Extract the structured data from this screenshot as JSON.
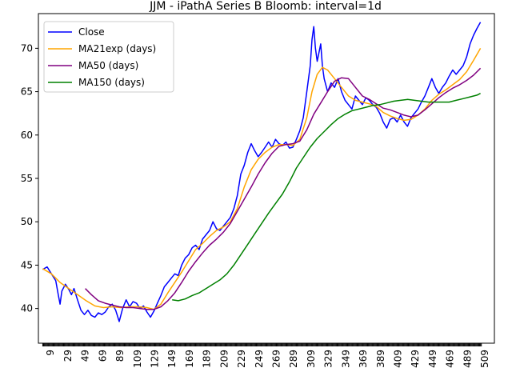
{
  "chart_data": {
    "type": "line",
    "title": "JJM - iPathA Series B Bloomb: interval=1d",
    "xlabel": "",
    "ylabel": "",
    "xlim": [
      -5,
      520
    ],
    "ylim": [
      36,
      74
    ],
    "y_ticks": [
      40,
      45,
      50,
      55,
      60,
      65,
      70
    ],
    "x_ticks": [
      9,
      29,
      49,
      69,
      89,
      109,
      129,
      149,
      169,
      189,
      209,
      229,
      249,
      269,
      289,
      309,
      329,
      349,
      369,
      389,
      409,
      429,
      449,
      469,
      489,
      509
    ],
    "grid": false,
    "legend_position": "top-left",
    "series": [
      {
        "name": "Close",
        "color": "#0000ff",
        "points": [
          [
            0,
            44.5
          ],
          [
            5,
            44.8
          ],
          [
            10,
            44.0
          ],
          [
            15,
            43.2
          ],
          [
            18,
            41.5
          ],
          [
            20,
            40.5
          ],
          [
            22,
            42.0
          ],
          [
            26,
            42.8
          ],
          [
            30,
            42.2
          ],
          [
            33,
            41.6
          ],
          [
            36,
            42.3
          ],
          [
            40,
            41.0
          ],
          [
            44,
            39.8
          ],
          [
            48,
            39.3
          ],
          [
            52,
            39.8
          ],
          [
            56,
            39.2
          ],
          [
            60,
            39.0
          ],
          [
            64,
            39.5
          ],
          [
            68,
            39.3
          ],
          [
            72,
            39.6
          ],
          [
            76,
            40.2
          ],
          [
            80,
            40.5
          ],
          [
            84,
            39.8
          ],
          [
            88,
            38.5
          ],
          [
            92,
            40.0
          ],
          [
            96,
            41.0
          ],
          [
            100,
            40.2
          ],
          [
            104,
            40.8
          ],
          [
            108,
            40.6
          ],
          [
            112,
            40.0
          ],
          [
            116,
            40.3
          ],
          [
            120,
            39.6
          ],
          [
            124,
            39.0
          ],
          [
            128,
            39.7
          ],
          [
            132,
            40.6
          ],
          [
            136,
            41.5
          ],
          [
            140,
            42.5
          ],
          [
            144,
            43.0
          ],
          [
            148,
            43.5
          ],
          [
            152,
            44.0
          ],
          [
            156,
            43.8
          ],
          [
            160,
            45.0
          ],
          [
            164,
            45.8
          ],
          [
            168,
            46.2
          ],
          [
            172,
            47.0
          ],
          [
            176,
            47.3
          ],
          [
            180,
            46.8
          ],
          [
            184,
            48.0
          ],
          [
            188,
            48.5
          ],
          [
            192,
            49.0
          ],
          [
            196,
            50.0
          ],
          [
            200,
            49.2
          ],
          [
            204,
            49.0
          ],
          [
            208,
            49.5
          ],
          [
            212,
            50.0
          ],
          [
            216,
            50.5
          ],
          [
            220,
            51.5
          ],
          [
            224,
            53.0
          ],
          [
            228,
            55.5
          ],
          [
            232,
            56.5
          ],
          [
            236,
            58.0
          ],
          [
            240,
            59.0
          ],
          [
            244,
            58.2
          ],
          [
            248,
            57.5
          ],
          [
            252,
            58.0
          ],
          [
            256,
            58.6
          ],
          [
            260,
            59.2
          ],
          [
            264,
            58.6
          ],
          [
            268,
            59.5
          ],
          [
            272,
            59.0
          ],
          [
            276,
            58.8
          ],
          [
            280,
            59.2
          ],
          [
            284,
            58.5
          ],
          [
            288,
            58.6
          ],
          [
            292,
            59.5
          ],
          [
            296,
            60.5
          ],
          [
            300,
            62.0
          ],
          [
            304,
            65.0
          ],
          [
            308,
            68.0
          ],
          [
            310,
            71.0
          ],
          [
            312,
            72.5
          ],
          [
            314,
            70.0
          ],
          [
            316,
            68.5
          ],
          [
            318,
            69.5
          ],
          [
            320,
            70.5
          ],
          [
            322,
            68.0
          ],
          [
            324,
            66.5
          ],
          [
            328,
            65.0
          ],
          [
            332,
            66.0
          ],
          [
            336,
            65.5
          ],
          [
            340,
            66.5
          ],
          [
            344,
            65.0
          ],
          [
            348,
            64.0
          ],
          [
            352,
            63.5
          ],
          [
            356,
            63.0
          ],
          [
            360,
            64.5
          ],
          [
            364,
            64.0
          ],
          [
            368,
            63.5
          ],
          [
            372,
            64.3
          ],
          [
            376,
            64.0
          ],
          [
            380,
            63.5
          ],
          [
            384,
            63.2
          ],
          [
            388,
            62.5
          ],
          [
            392,
            61.5
          ],
          [
            396,
            60.8
          ],
          [
            400,
            61.8
          ],
          [
            404,
            62.0
          ],
          [
            408,
            61.5
          ],
          [
            412,
            62.3
          ],
          [
            416,
            61.5
          ],
          [
            420,
            61.0
          ],
          [
            424,
            62.0
          ],
          [
            428,
            62.5
          ],
          [
            432,
            63.0
          ],
          [
            436,
            63.8
          ],
          [
            440,
            64.5
          ],
          [
            444,
            65.5
          ],
          [
            448,
            66.5
          ],
          [
            452,
            65.5
          ],
          [
            456,
            64.8
          ],
          [
            460,
            65.5
          ],
          [
            464,
            66.0
          ],
          [
            468,
            66.8
          ],
          [
            472,
            67.5
          ],
          [
            476,
            67.0
          ],
          [
            480,
            67.5
          ],
          [
            484,
            68.0
          ],
          [
            488,
            69.0
          ],
          [
            492,
            70.5
          ],
          [
            496,
            71.5
          ],
          [
            500,
            72.3
          ],
          [
            504,
            73.0
          ]
        ]
      },
      {
        "name": "MA21exp (days)",
        "color": "#ffa500",
        "points": [
          [
            0,
            44.6
          ],
          [
            10,
            44.0
          ],
          [
            20,
            43.0
          ],
          [
            30,
            42.3
          ],
          [
            40,
            41.6
          ],
          [
            50,
            40.9
          ],
          [
            60,
            40.3
          ],
          [
            70,
            40.1
          ],
          [
            80,
            40.2
          ],
          [
            90,
            40.1
          ],
          [
            100,
            40.2
          ],
          [
            110,
            40.2
          ],
          [
            120,
            40.1
          ],
          [
            128,
            39.9
          ],
          [
            136,
            40.5
          ],
          [
            144,
            41.8
          ],
          [
            152,
            43.0
          ],
          [
            160,
            44.2
          ],
          [
            168,
            45.5
          ],
          [
            176,
            46.8
          ],
          [
            184,
            47.5
          ],
          [
            192,
            48.3
          ],
          [
            200,
            49.0
          ],
          [
            208,
            49.4
          ],
          [
            216,
            50.0
          ],
          [
            224,
            51.5
          ],
          [
            232,
            54.0
          ],
          [
            240,
            56.0
          ],
          [
            248,
            57.2
          ],
          [
            256,
            58.0
          ],
          [
            264,
            58.6
          ],
          [
            272,
            58.9
          ],
          [
            280,
            58.9
          ],
          [
            288,
            58.8
          ],
          [
            296,
            59.5
          ],
          [
            304,
            62.0
          ],
          [
            310,
            65.0
          ],
          [
            316,
            67.0
          ],
          [
            322,
            67.8
          ],
          [
            328,
            67.5
          ],
          [
            336,
            66.5
          ],
          [
            344,
            65.5
          ],
          [
            352,
            64.5
          ],
          [
            360,
            64.0
          ],
          [
            368,
            63.8
          ],
          [
            376,
            63.6
          ],
          [
            384,
            63.3
          ],
          [
            392,
            62.6
          ],
          [
            400,
            62.2
          ],
          [
            408,
            61.9
          ],
          [
            416,
            61.7
          ],
          [
            424,
            61.8
          ],
          [
            432,
            62.3
          ],
          [
            440,
            63.0
          ],
          [
            448,
            64.0
          ],
          [
            456,
            64.7
          ],
          [
            464,
            65.2
          ],
          [
            472,
            65.8
          ],
          [
            480,
            66.4
          ],
          [
            488,
            67.3
          ],
          [
            496,
            68.6
          ],
          [
            504,
            70.0
          ]
        ]
      },
      {
        "name": "MA50 (days)",
        "color": "#800080",
        "points": [
          [
            49,
            42.3
          ],
          [
            56,
            41.6
          ],
          [
            64,
            40.9
          ],
          [
            72,
            40.6
          ],
          [
            80,
            40.4
          ],
          [
            88,
            40.2
          ],
          [
            96,
            40.1
          ],
          [
            104,
            40.1
          ],
          [
            112,
            40.0
          ],
          [
            120,
            39.9
          ],
          [
            128,
            39.9
          ],
          [
            136,
            40.2
          ],
          [
            144,
            40.9
          ],
          [
            152,
            41.8
          ],
          [
            160,
            43.0
          ],
          [
            168,
            44.3
          ],
          [
            176,
            45.4
          ],
          [
            184,
            46.4
          ],
          [
            192,
            47.3
          ],
          [
            200,
            48.0
          ],
          [
            208,
            48.8
          ],
          [
            216,
            49.8
          ],
          [
            224,
            51.2
          ],
          [
            232,
            52.6
          ],
          [
            240,
            54.0
          ],
          [
            248,
            55.5
          ],
          [
            256,
            56.8
          ],
          [
            264,
            57.9
          ],
          [
            272,
            58.7
          ],
          [
            280,
            58.9
          ],
          [
            288,
            59.0
          ],
          [
            296,
            59.3
          ],
          [
            304,
            60.6
          ],
          [
            312,
            62.4
          ],
          [
            320,
            63.7
          ],
          [
            328,
            65.0
          ],
          [
            336,
            66.2
          ],
          [
            344,
            66.6
          ],
          [
            352,
            66.5
          ],
          [
            360,
            65.5
          ],
          [
            368,
            64.5
          ],
          [
            376,
            64.1
          ],
          [
            384,
            63.6
          ],
          [
            392,
            63.1
          ],
          [
            400,
            62.9
          ],
          [
            408,
            62.6
          ],
          [
            416,
            62.3
          ],
          [
            424,
            62.1
          ],
          [
            432,
            62.3
          ],
          [
            440,
            62.9
          ],
          [
            448,
            63.6
          ],
          [
            456,
            64.3
          ],
          [
            464,
            64.9
          ],
          [
            472,
            65.4
          ],
          [
            480,
            65.8
          ],
          [
            488,
            66.3
          ],
          [
            496,
            66.9
          ],
          [
            504,
            67.7
          ]
        ]
      },
      {
        "name": "MA150 (days)",
        "color": "#008000",
        "points": [
          [
            149,
            41.0
          ],
          [
            156,
            40.9
          ],
          [
            164,
            41.1
          ],
          [
            172,
            41.5
          ],
          [
            180,
            41.8
          ],
          [
            188,
            42.3
          ],
          [
            196,
            42.8
          ],
          [
            204,
            43.3
          ],
          [
            212,
            44.0
          ],
          [
            220,
            45.0
          ],
          [
            228,
            46.2
          ],
          [
            236,
            47.4
          ],
          [
            244,
            48.6
          ],
          [
            252,
            49.8
          ],
          [
            260,
            51.0
          ],
          [
            268,
            52.1
          ],
          [
            276,
            53.2
          ],
          [
            284,
            54.6
          ],
          [
            292,
            56.2
          ],
          [
            300,
            57.4
          ],
          [
            308,
            58.6
          ],
          [
            316,
            59.6
          ],
          [
            324,
            60.4
          ],
          [
            332,
            61.2
          ],
          [
            340,
            61.9
          ],
          [
            348,
            62.4
          ],
          [
            356,
            62.8
          ],
          [
            364,
            63.0
          ],
          [
            372,
            63.2
          ],
          [
            380,
            63.4
          ],
          [
            388,
            63.5
          ],
          [
            396,
            63.7
          ],
          [
            404,
            63.9
          ],
          [
            412,
            64.0
          ],
          [
            420,
            64.1
          ],
          [
            428,
            64.0
          ],
          [
            436,
            63.9
          ],
          [
            444,
            63.8
          ],
          [
            452,
            63.8
          ],
          [
            460,
            63.8
          ],
          [
            468,
            63.8
          ],
          [
            476,
            64.0
          ],
          [
            484,
            64.2
          ],
          [
            492,
            64.4
          ],
          [
            500,
            64.6
          ],
          [
            504,
            64.8
          ]
        ]
      }
    ]
  }
}
